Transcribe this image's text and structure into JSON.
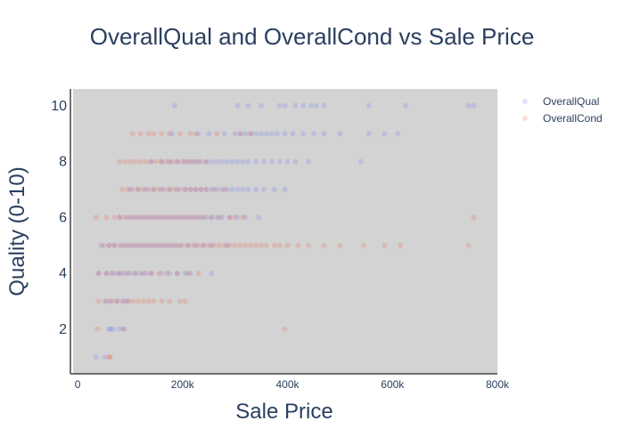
{
  "chart_data": {
    "type": "scatter",
    "title": "OverallQual and OverallCond vs Sale Price",
    "xlabel": "Sale Price",
    "ylabel": "Quality (0-10)",
    "xlim": [
      -12000,
      800000
    ],
    "ylim": [
      0.4,
      10.6
    ],
    "x_ticks": [
      0,
      200000,
      400000,
      600000,
      800000
    ],
    "x_tick_labels": [
      "0",
      "200k",
      "400k",
      "600k",
      "800k"
    ],
    "y_ticks": [
      2,
      4,
      6,
      8,
      10
    ],
    "y_tick_labels": [
      "2",
      "4",
      "6",
      "8",
      "10"
    ],
    "plot_background": "#d3d3d3",
    "grid": false,
    "legend_position": "top-right",
    "series": [
      {
        "name": "OverallQual",
        "color": "#636efa",
        "opacity": 0.2,
        "x": [
          35000,
          52000,
          60000,
          62000,
          68000,
          80000,
          88000,
          52000,
          62000,
          75000,
          88000,
          95000,
          40000,
          55000,
          65000,
          75000,
          82000,
          90000,
          100000,
          110000,
          120000,
          130000,
          140000,
          160000,
          175000,
          190000,
          205000,
          215000,
          255000,
          45000,
          60000,
          70000,
          85000,
          95000,
          105000,
          115000,
          125000,
          135000,
          145000,
          155000,
          165000,
          175000,
          185000,
          195000,
          210000,
          225000,
          240000,
          255000,
          285000,
          80000,
          95000,
          105000,
          115000,
          125000,
          135000,
          145000,
          155000,
          165000,
          175000,
          185000,
          195000,
          205000,
          215000,
          225000,
          235000,
          245000,
          255000,
          265000,
          275000,
          290000,
          305000,
          320000,
          345000,
          100000,
          115000,
          130000,
          145000,
          160000,
          175000,
          190000,
          205000,
          215000,
          225000,
          235000,
          245000,
          255000,
          265000,
          275000,
          285000,
          295000,
          305000,
          315000,
          325000,
          340000,
          355000,
          375000,
          395000,
          140000,
          160000,
          175000,
          190000,
          205000,
          215000,
          225000,
          235000,
          245000,
          255000,
          265000,
          275000,
          285000,
          295000,
          305000,
          315000,
          325000,
          340000,
          355000,
          370000,
          385000,
          400000,
          415000,
          440000,
          540000,
          180000,
          230000,
          250000,
          280000,
          300000,
          310000,
          320000,
          330000,
          340000,
          350000,
          360000,
          370000,
          380000,
          395000,
          410000,
          430000,
          450000,
          470000,
          500000,
          555000,
          585000,
          610000,
          185000,
          305000,
          325000,
          350000,
          385000,
          395000,
          415000,
          430000,
          445000,
          455000,
          470000,
          555000,
          625000,
          745000,
          755000
        ],
        "y": [
          1,
          1,
          2,
          2,
          2,
          2,
          2,
          3,
          3,
          3,
          3,
          3,
          4,
          4,
          4,
          4,
          4,
          4,
          4,
          4,
          4,
          4,
          4,
          4,
          4,
          4,
          4,
          4,
          4,
          5,
          5,
          5,
          5,
          5,
          5,
          5,
          5,
          5,
          5,
          5,
          5,
          5,
          5,
          5,
          5,
          5,
          5,
          5,
          5,
          6,
          6,
          6,
          6,
          6,
          6,
          6,
          6,
          6,
          6,
          6,
          6,
          6,
          6,
          6,
          6,
          6,
          6,
          6,
          6,
          6,
          6,
          6,
          6,
          7,
          7,
          7,
          7,
          7,
          7,
          7,
          7,
          7,
          7,
          7,
          7,
          7,
          7,
          7,
          7,
          7,
          7,
          7,
          7,
          7,
          7,
          7,
          7,
          8,
          8,
          8,
          8,
          8,
          8,
          8,
          8,
          8,
          8,
          8,
          8,
          8,
          8,
          8,
          8,
          8,
          8,
          8,
          8,
          8,
          8,
          8,
          8,
          8,
          9,
          9,
          9,
          9,
          9,
          9,
          9,
          9,
          9,
          9,
          9,
          9,
          9,
          9,
          9,
          9,
          9,
          9,
          9,
          9,
          9,
          9,
          10,
          10,
          10,
          10,
          10,
          10,
          10,
          10,
          10,
          10,
          10,
          10,
          10,
          10,
          10
        ]
      },
      {
        "name": "OverallCond",
        "color": "#ef553b",
        "opacity": 0.2,
        "x": [
          60000,
          62000,
          38000,
          88000,
          395000,
          40000,
          55000,
          65000,
          75000,
          85000,
          95000,
          105000,
          115000,
          125000,
          135000,
          145000,
          160000,
          175000,
          195000,
          205000,
          40000,
          55000,
          68000,
          80000,
          95000,
          110000,
          125000,
          140000,
          155000,
          170000,
          190000,
          210000,
          230000,
          50000,
          60000,
          70000,
          80000,
          90000,
          100000,
          110000,
          120000,
          130000,
          140000,
          150000,
          160000,
          170000,
          180000,
          190000,
          200000,
          210000,
          220000,
          230000,
          240000,
          250000,
          260000,
          270000,
          280000,
          290000,
          300000,
          310000,
          320000,
          330000,
          340000,
          350000,
          360000,
          375000,
          385000,
          400000,
          420000,
          440000,
          470000,
          500000,
          545000,
          585000,
          615000,
          745000,
          35000,
          55000,
          70000,
          80000,
          90000,
          100000,
          110000,
          120000,
          130000,
          140000,
          150000,
          160000,
          170000,
          180000,
          190000,
          200000,
          210000,
          220000,
          230000,
          240000,
          255000,
          270000,
          290000,
          300000,
          315000,
          755000,
          85000,
          95000,
          105000,
          115000,
          125000,
          135000,
          145000,
          155000,
          165000,
          175000,
          185000,
          195000,
          205000,
          215000,
          225000,
          235000,
          245000,
          260000,
          280000,
          80000,
          90000,
          100000,
          110000,
          120000,
          130000,
          140000,
          150000,
          160000,
          170000,
          180000,
          190000,
          200000,
          210000,
          220000,
          230000,
          245000,
          105000,
          120000,
          135000,
          145000,
          160000,
          175000,
          195000,
          215000,
          225000,
          265000,
          310000,
          330000
        ],
        "y": [
          1,
          1,
          2,
          2,
          2,
          3,
          3,
          3,
          3,
          3,
          3,
          3,
          3,
          3,
          3,
          3,
          3,
          3,
          3,
          3,
          4,
          4,
          4,
          4,
          4,
          4,
          4,
          4,
          4,
          4,
          4,
          4,
          4,
          5,
          5,
          5,
          5,
          5,
          5,
          5,
          5,
          5,
          5,
          5,
          5,
          5,
          5,
          5,
          5,
          5,
          5,
          5,
          5,
          5,
          5,
          5,
          5,
          5,
          5,
          5,
          5,
          5,
          5,
          5,
          5,
          5,
          5,
          5,
          5,
          5,
          5,
          5,
          5,
          5,
          5,
          5,
          6,
          6,
          6,
          6,
          6,
          6,
          6,
          6,
          6,
          6,
          6,
          6,
          6,
          6,
          6,
          6,
          6,
          6,
          6,
          6,
          6,
          6,
          6,
          6,
          6,
          6,
          7,
          7,
          7,
          7,
          7,
          7,
          7,
          7,
          7,
          7,
          7,
          7,
          7,
          7,
          7,
          7,
          7,
          7,
          7,
          8,
          8,
          8,
          8,
          8,
          8,
          8,
          8,
          8,
          8,
          8,
          8,
          8,
          8,
          8,
          8,
          8,
          9,
          9,
          9,
          9,
          9,
          9,
          9,
          9,
          9,
          9,
          9,
          9
        ]
      }
    ]
  }
}
